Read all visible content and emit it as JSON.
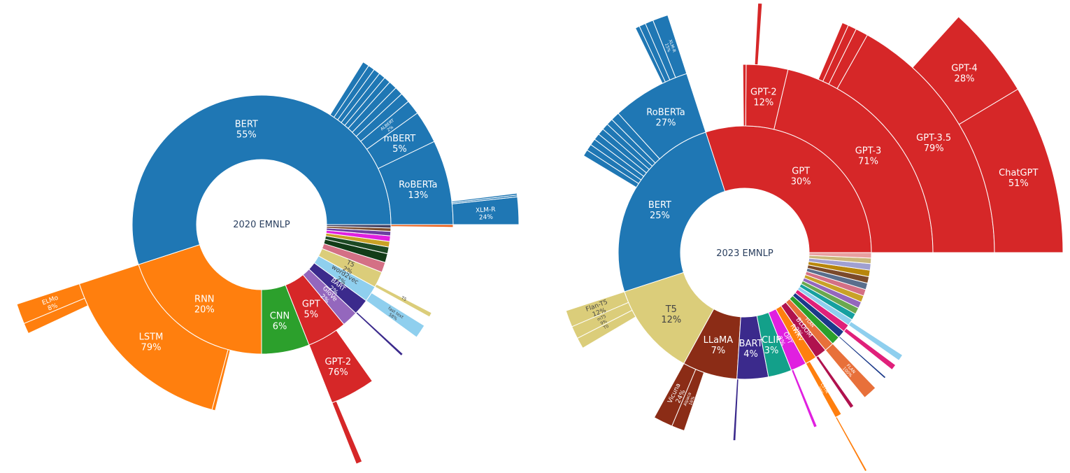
{
  "chart_data": [
    {
      "type": "sunburst",
      "title": "2020 EMNLP",
      "segments": [
        {
          "label": "BERT",
          "percent": "55%",
          "ring": 1,
          "start": 0,
          "end": 198,
          "color": "#1f77b4"
        },
        {
          "label": "RNN",
          "percent": "20%",
          "ring": 1,
          "start": 198,
          "end": 270,
          "color": "#ff7f0e"
        },
        {
          "label": "CNN",
          "percent": "6%",
          "ring": 1,
          "start": 270,
          "end": 291.6,
          "color": "#2ca02c"
        },
        {
          "label": "GPT",
          "percent": "5%",
          "ring": 1,
          "start": 291.6,
          "end": 309.6,
          "color": "#d62728"
        },
        {
          "label": "GloVe",
          "percent": "2%",
          "ring": 1,
          "start": 309.6,
          "end": 316.8,
          "color": "#9467bd"
        },
        {
          "label": "BART",
          "percent": "2%",
          "ring": 1,
          "start": 316.8,
          "end": 324,
          "color": "#3b2a8c"
        },
        {
          "label": "word2vec",
          "percent": "2%",
          "ring": 1,
          "start": 324,
          "end": 331.2,
          "color": "#8fcfee"
        },
        {
          "label": "T5",
          "percent": "2%",
          "ring": 1,
          "start": 331.2,
          "end": 338.4,
          "color": "#dbcd7a"
        },
        {
          "label": "",
          "percent": "",
          "ring": 1,
          "start": 338.4,
          "end": 343,
          "color": "#d47085"
        },
        {
          "label": "",
          "percent": "",
          "ring": 1,
          "start": 343,
          "end": 347,
          "color": "#123c18"
        },
        {
          "label": "",
          "percent": "",
          "ring": 1,
          "start": 347,
          "end": 350,
          "color": "#1d4a24"
        },
        {
          "label": "",
          "percent": "",
          "ring": 1,
          "start": 350,
          "end": 352.5,
          "color": "#c9a227"
        },
        {
          "label": "",
          "percent": "",
          "ring": 1,
          "start": 352.5,
          "end": 355,
          "color": "#e020e0"
        },
        {
          "label": "",
          "percent": "",
          "ring": 1,
          "start": 355,
          "end": 357,
          "color": "#6b3fa0"
        },
        {
          "label": "",
          "percent": "",
          "ring": 1,
          "start": 357,
          "end": 358.5,
          "color": "#7b4a2a"
        },
        {
          "label": "",
          "percent": "",
          "ring": 1,
          "start": 358.5,
          "end": 360,
          "color": "#444466"
        },
        {
          "label": "RoBERTa",
          "percent": "13%",
          "ring": 2,
          "start": 0,
          "end": 25.7,
          "color": "#1f77b4"
        },
        {
          "label": "mBERT",
          "percent": "5%",
          "ring": 2,
          "start": 25.7,
          "end": 35.6,
          "color": "#1f77b4"
        },
        {
          "label": "ALBERT",
          "percent": "2%",
          "ring": 2,
          "start": 35.6,
          "end": 40,
          "color": "#1f77b4"
        },
        {
          "label": "",
          "percent": "",
          "ring": 2,
          "start": 40,
          "end": 43,
          "color": "#1f77b4"
        },
        {
          "label": "",
          "percent": "",
          "ring": 2,
          "start": 43,
          "end": 45.5,
          "color": "#1f77b4"
        },
        {
          "label": "",
          "percent": "",
          "ring": 2,
          "start": 45.5,
          "end": 48,
          "color": "#1f77b4"
        },
        {
          "label": "",
          "percent": "",
          "ring": 2,
          "start": 48,
          "end": 50,
          "color": "#1f77b4"
        },
        {
          "label": "",
          "percent": "",
          "ring": 2,
          "start": 50,
          "end": 52,
          "color": "#1f77b4"
        },
        {
          "label": "",
          "percent": "",
          "ring": 2,
          "start": 52,
          "end": 54,
          "color": "#1f77b4"
        },
        {
          "label": "",
          "percent": "",
          "ring": 2,
          "start": 54,
          "end": 56,
          "color": "#1f77b4"
        },
        {
          "label": "",
          "percent": "",
          "ring": 2,
          "start": 56,
          "end": 58,
          "color": "#1f77b4"
        },
        {
          "label": "XLM-R",
          "percent": "24%",
          "ring": 3,
          "start": 0,
          "end": 6.2,
          "color": "#1f77b4"
        },
        {
          "label": "",
          "percent": "",
          "ring": 3,
          "start": 6.2,
          "end": 6.6,
          "color": "#1f77b4"
        },
        {
          "label": "",
          "percent": "",
          "ring": 3,
          "start": 6.6,
          "end": 7.0,
          "color": "#1f77b4"
        },
        {
          "label": "LSTM",
          "percent": "79%",
          "ring": 2,
          "start": 198,
          "end": 255,
          "color": "#ff7f0e"
        },
        {
          "label": "",
          "percent": "",
          "ring": 2,
          "start": 255,
          "end": 256,
          "color": "#ff7f0e"
        },
        {
          "label": "ELMo",
          "percent": "8%",
          "ring": 3,
          "start": 198,
          "end": 202.6,
          "color": "#ff7f0e"
        },
        {
          "label": "",
          "percent": "",
          "ring": 3,
          "start": 202.6,
          "end": 205,
          "color": "#ff7f0e"
        },
        {
          "label": "GPT-2",
          "percent": "76%",
          "ring": 2,
          "start": 291.6,
          "end": 305.3,
          "color": "#d62728"
        },
        {
          "label": "",
          "percent": "",
          "ring": 3,
          "start": 291.6,
          "end": 293,
          "color": "#d62728"
        },
        {
          "label": "",
          "percent": "",
          "ring": 2,
          "start": 316.8,
          "end": 317.6,
          "color": "#3b2a8c"
        },
        {
          "label": "fast text",
          "percent": "58%",
          "ring": 2,
          "start": 324,
          "end": 328.2,
          "color": "#8fcfee"
        },
        {
          "label": "T5",
          "percent": "",
          "ring": 2,
          "start": 331.2,
          "end": 332.6,
          "color": "#dbcd7a"
        },
        {
          "label": "",
          "percent": "",
          "ring": 2,
          "start": 359.2,
          "end": 360,
          "color": "#e8601c"
        }
      ]
    },
    {
      "type": "sunburst",
      "title": "2023 EMNLP",
      "segments": [
        {
          "label": "GPT",
          "percent": "30%",
          "ring": 1,
          "start": 0,
          "end": 108,
          "color": "#d62728"
        },
        {
          "label": "BERT",
          "percent": "25%",
          "ring": 1,
          "start": 108,
          "end": 198,
          "color": "#1f77b4"
        },
        {
          "label": "T5",
          "percent": "12%",
          "ring": 1,
          "start": 198,
          "end": 241.2,
          "color": "#dbcd7a"
        },
        {
          "label": "LLaMA",
          "percent": "7%",
          "ring": 1,
          "start": 241.2,
          "end": 266.4,
          "color": "#8b2c16"
        },
        {
          "label": "BART",
          "percent": "4%",
          "ring": 1,
          "start": 266.4,
          "end": 280.8,
          "color": "#3b2a8c"
        },
        {
          "label": "CLIP",
          "percent": "3%",
          "ring": 1,
          "start": 280.8,
          "end": 291.6,
          "color": "#13a08a"
        },
        {
          "label": "OPT",
          "percent": "2%",
          "ring": 1,
          "start": 291.6,
          "end": 298.8,
          "color": "#e020e0"
        },
        {
          "label": "RWKV",
          "percent": "",
          "ring": 1,
          "start": 298.8,
          "end": 304.2,
          "color": "#ff7f0e"
        },
        {
          "label": "BLOOM",
          "percent": "2%",
          "ring": 1,
          "start": 304.2,
          "end": 309.6,
          "color": "#b0124e"
        },
        {
          "label": "FLAN",
          "percent": "",
          "ring": 1,
          "start": 309.6,
          "end": 314,
          "color": "#e8703a"
        },
        {
          "label": "",
          "percent": "",
          "ring": 1,
          "start": 314,
          "end": 318,
          "color": "#2ca02c"
        },
        {
          "label": "",
          "percent": "",
          "ring": 1,
          "start": 318,
          "end": 321.5,
          "color": "#1b3a8a"
        },
        {
          "label": "",
          "percent": "",
          "ring": 1,
          "start": 321.5,
          "end": 325,
          "color": "#e0207a"
        },
        {
          "label": "",
          "percent": "",
          "ring": 1,
          "start": 325,
          "end": 328,
          "color": "#8fcfee"
        },
        {
          "label": "",
          "percent": "",
          "ring": 1,
          "start": 328,
          "end": 331,
          "color": "#16a0a0"
        },
        {
          "label": "",
          "percent": "",
          "ring": 1,
          "start": 331,
          "end": 334,
          "color": "#6aa84f"
        },
        {
          "label": "",
          "percent": "",
          "ring": 1,
          "start": 334,
          "end": 337,
          "color": "#9467bd"
        },
        {
          "label": "",
          "percent": "",
          "ring": 1,
          "start": 337,
          "end": 340,
          "color": "#c9a227"
        },
        {
          "label": "",
          "percent": "",
          "ring": 1,
          "start": 340,
          "end": 343,
          "color": "#d47085"
        },
        {
          "label": "",
          "percent": "",
          "ring": 1,
          "start": 343,
          "end": 346,
          "color": "#5a6e8c"
        },
        {
          "label": "",
          "percent": "",
          "ring": 1,
          "start": 346,
          "end": 349,
          "color": "#7b4a2a"
        },
        {
          "label": "",
          "percent": "",
          "ring": 1,
          "start": 349,
          "end": 352,
          "color": "#b8860b"
        },
        {
          "label": "",
          "percent": "",
          "ring": 1,
          "start": 352,
          "end": 355,
          "color": "#a0a0d0"
        },
        {
          "label": "",
          "percent": "",
          "ring": 1,
          "start": 355,
          "end": 357.5,
          "color": "#c9b77a"
        },
        {
          "label": "",
          "percent": "",
          "ring": 1,
          "start": 357.5,
          "end": 360,
          "color": "#e8a0a0"
        },
        {
          "label": "GPT-3",
          "percent": "71%",
          "ring": 2,
          "start": 0,
          "end": 76.7,
          "color": "#d62728"
        },
        {
          "label": "GPT-2",
          "percent": "12%",
          "ring": 2,
          "start": 76.7,
          "end": 89.6,
          "color": "#d62728"
        },
        {
          "label": "",
          "percent": "",
          "ring": 2,
          "start": 89.6,
          "end": 90.6,
          "color": "#d62728"
        },
        {
          "label": "GPT-3.5",
          "percent": "79%",
          "ring": 3,
          "start": 0,
          "end": 60.6,
          "color": "#d62728"
        },
        {
          "label": "",
          "percent": "",
          "ring": 3,
          "start": 60.6,
          "end": 63.5,
          "color": "#d62728"
        },
        {
          "label": "",
          "percent": "",
          "ring": 3,
          "start": 63.5,
          "end": 65.5,
          "color": "#d62728"
        },
        {
          "label": "",
          "percent": "",
          "ring": 3,
          "start": 65.5,
          "end": 67,
          "color": "#d62728"
        },
        {
          "label": "",
          "percent": "",
          "ring": 3,
          "start": 86,
          "end": 87,
          "color": "#d62728"
        },
        {
          "label": "ChatGPT",
          "percent": "51%",
          "ring": 4,
          "start": 0,
          "end": 30.9,
          "color": "#d62728"
        },
        {
          "label": "GPT-4",
          "percent": "28%",
          "ring": 4,
          "start": 30.9,
          "end": 47.8,
          "color": "#d62728"
        },
        {
          "label": "RoBERTa",
          "percent": "27%",
          "ring": 2,
          "start": 108,
          "end": 132.3,
          "color": "#1f77b4"
        },
        {
          "label": "",
          "percent": "",
          "ring": 2,
          "start": 132.3,
          "end": 135,
          "color": "#1f77b4"
        },
        {
          "label": "",
          "percent": "",
          "ring": 2,
          "start": 135,
          "end": 137,
          "color": "#1f77b4"
        },
        {
          "label": "",
          "percent": "",
          "ring": 2,
          "start": 137,
          "end": 139,
          "color": "#1f77b4"
        },
        {
          "label": "",
          "percent": "",
          "ring": 2,
          "start": 139,
          "end": 141,
          "color": "#1f77b4"
        },
        {
          "label": "",
          "percent": "",
          "ring": 2,
          "start": 141,
          "end": 143,
          "color": "#1f77b4"
        },
        {
          "label": "",
          "percent": "",
          "ring": 2,
          "start": 143,
          "end": 145,
          "color": "#1f77b4"
        },
        {
          "label": "",
          "percent": "",
          "ring": 2,
          "start": 145,
          "end": 147,
          "color": "#1f77b4"
        },
        {
          "label": "",
          "percent": "",
          "ring": 2,
          "start": 147,
          "end": 149,
          "color": "#1f77b4"
        },
        {
          "label": "XLM-R",
          "percent": "15%",
          "ring": 3,
          "start": 108,
          "end": 111.6,
          "color": "#1f77b4"
        },
        {
          "label": "",
          "percent": "",
          "ring": 3,
          "start": 111.6,
          "end": 113.5,
          "color": "#1f77b4"
        },
        {
          "label": "",
          "percent": "",
          "ring": 3,
          "start": 113.5,
          "end": 115,
          "color": "#1f77b4"
        },
        {
          "label": "",
          "percent": "",
          "ring": 3,
          "start": 115,
          "end": 116,
          "color": "#1f77b4"
        },
        {
          "label": "Flan-T5",
          "percent": "12%",
          "ring": 2,
          "start": 198,
          "end": 203.2,
          "color": "#dbcd7a"
        },
        {
          "label": "mT5",
          "percent": "9%",
          "ring": 2,
          "start": 203.2,
          "end": 207.1,
          "color": "#dbcd7a"
        },
        {
          "label": "T0",
          "percent": "",
          "ring": 2,
          "start": 207.1,
          "end": 210.5,
          "color": "#dbcd7a"
        },
        {
          "label": "Vicuna",
          "percent": "24%",
          "ring": 2,
          "start": 241.2,
          "end": 247.2,
          "color": "#8b2c16"
        },
        {
          "label": "Alpaca",
          "percent": "16%",
          "ring": 2,
          "start": 247.2,
          "end": 251.2,
          "color": "#8b2c16"
        },
        {
          "label": "",
          "percent": "",
          "ring": 2,
          "start": 266.4,
          "end": 267.2,
          "color": "#3b2a8c"
        },
        {
          "label": "",
          "percent": "",
          "ring": 2,
          "start": 291.6,
          "end": 292.6,
          "color": "#e020e0"
        },
        {
          "label": "LSTM",
          "percent": "38%",
          "ring": 2,
          "start": 298.8,
          "end": 300.9,
          "color": "#ff7f0e"
        },
        {
          "label": "",
          "percent": "",
          "ring": 3,
          "start": 298.8,
          "end": 299.3,
          "color": "#ff7f0e"
        },
        {
          "label": "",
          "percent": "",
          "ring": 2,
          "start": 304.2,
          "end": 305.4,
          "color": "#b0124e"
        },
        {
          "label": "FLAN",
          "percent": "100%",
          "ring": 2,
          "start": 309.6,
          "end": 314,
          "color": "#e8703a"
        },
        {
          "label": "",
          "percent": "",
          "ring": 2,
          "start": 318,
          "end": 318.6,
          "color": "#1b3a8a"
        },
        {
          "label": "",
          "percent": "",
          "ring": 2,
          "start": 321.5,
          "end": 323.3,
          "color": "#e0207a"
        },
        {
          "label": "",
          "percent": "",
          "ring": 2,
          "start": 325,
          "end": 327,
          "color": "#8fcfee"
        }
      ]
    }
  ]
}
